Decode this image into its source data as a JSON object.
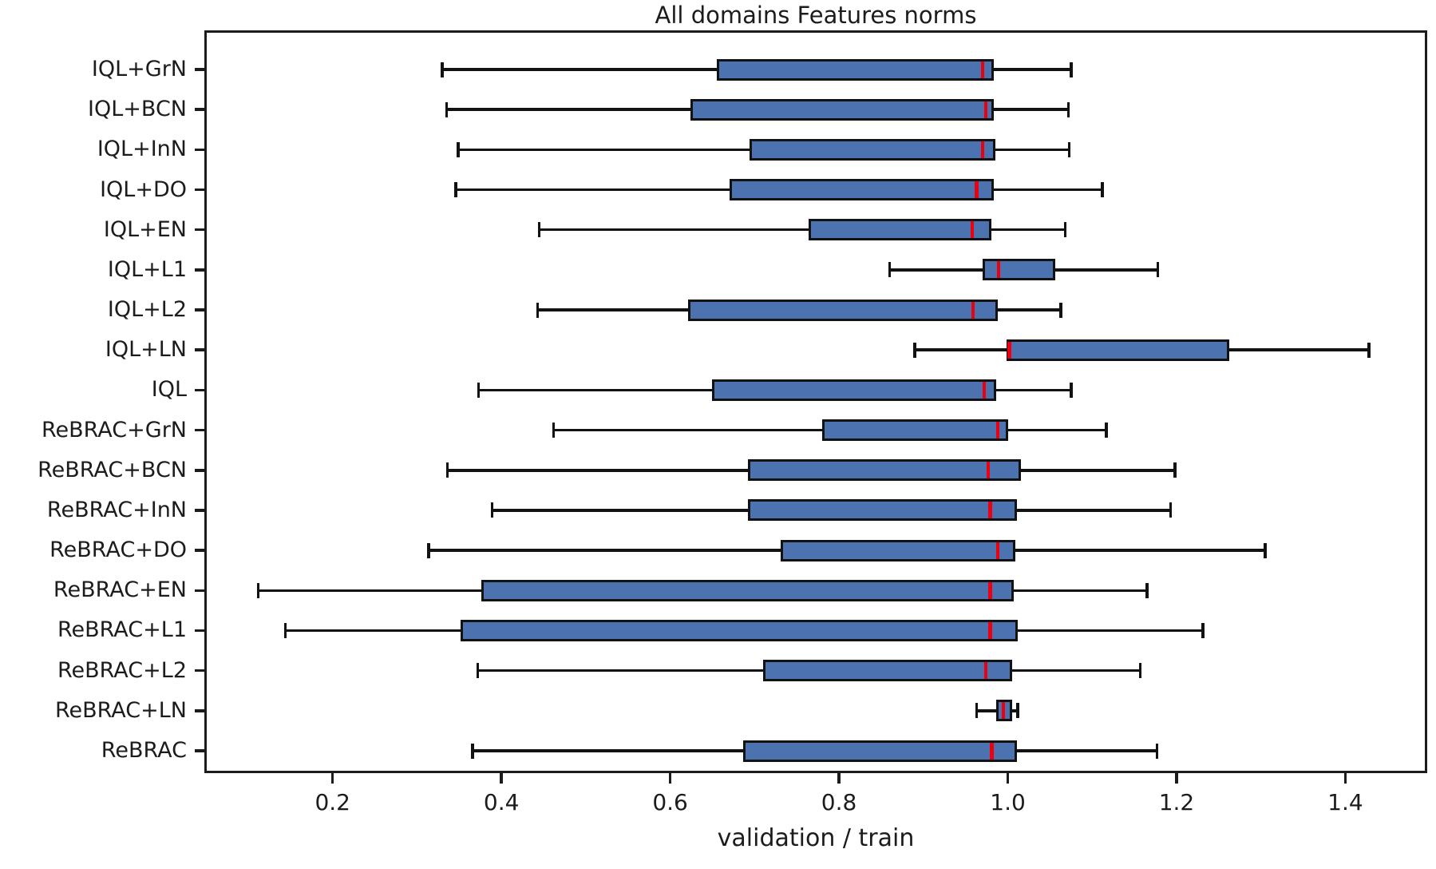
{
  "chart_data": {
    "type": "boxplot",
    "orientation": "horizontal",
    "title": "All domains Features norms",
    "xlabel": "validation / train",
    "ylabel": "",
    "xlim": [
      0.048,
      1.497
    ],
    "x_tick_values": [
      0.2,
      0.4,
      0.6,
      0.8,
      1.0,
      1.2,
      1.4
    ],
    "x_tick_labels": [
      "0.2",
      "0.4",
      "0.6",
      "0.8",
      "1.0",
      "1.2",
      "1.4"
    ],
    "grid": false,
    "legend": "none",
    "categories": [
      "IQL+GrN",
      "IQL+BCN",
      "IQL+InN",
      "IQL+DO",
      "IQL+EN",
      "IQL+L1",
      "IQL+L2",
      "IQL+LN",
      "IQL",
      "ReBRAC+GrN",
      "ReBRAC+BCN",
      "ReBRAC+InN",
      "ReBRAC+DO",
      "ReBRAC+EN",
      "ReBRAC+L1",
      "ReBRAC+L2",
      "ReBRAC+LN",
      "ReBRAC"
    ],
    "boxes": [
      {
        "label": "IQL+GrN",
        "whisker_low": 0.33,
        "q1": 0.655,
        "median": 0.97,
        "q3": 0.983,
        "whisker_high": 1.075
      },
      {
        "label": "IQL+BCN",
        "whisker_low": 0.335,
        "q1": 0.624,
        "median": 0.974,
        "q3": 0.983,
        "whisker_high": 1.072
      },
      {
        "label": "IQL+InN",
        "whisker_low": 0.349,
        "q1": 0.694,
        "median": 0.97,
        "q3": 0.985,
        "whisker_high": 1.073
      },
      {
        "label": "IQL+DO",
        "whisker_low": 0.346,
        "q1": 0.67,
        "median": 0.963,
        "q3": 0.983,
        "whisker_high": 1.112
      },
      {
        "label": "IQL+EN",
        "whisker_low": 0.445,
        "q1": 0.764,
        "median": 0.958,
        "q3": 0.981,
        "whisker_high": 1.068
      },
      {
        "label": "IQL+L1",
        "whisker_low": 0.86,
        "q1": 0.97,
        "median": 0.989,
        "q3": 1.056,
        "whisker_high": 1.178
      },
      {
        "label": "IQL+L2",
        "whisker_low": 0.443,
        "q1": 0.621,
        "median": 0.959,
        "q3": 0.988,
        "whisker_high": 1.063
      },
      {
        "label": "IQL+LN",
        "whisker_low": 0.89,
        "q1": 0.999,
        "median": 1.002,
        "q3": 1.262,
        "whisker_high": 1.428
      },
      {
        "label": "IQL",
        "whisker_low": 0.373,
        "q1": 0.65,
        "median": 0.972,
        "q3": 0.986,
        "whisker_high": 1.075
      },
      {
        "label": "ReBRAC+GrN",
        "whisker_low": 0.462,
        "q1": 0.78,
        "median": 0.988,
        "q3": 1.0,
        "whisker_high": 1.117
      },
      {
        "label": "ReBRAC+BCN",
        "whisker_low": 0.336,
        "q1": 0.692,
        "median": 0.977,
        "q3": 1.016,
        "whisker_high": 1.198
      },
      {
        "label": "ReBRAC+InN",
        "whisker_low": 0.389,
        "q1": 0.692,
        "median": 0.979,
        "q3": 1.011,
        "whisker_high": 1.193
      },
      {
        "label": "ReBRAC+DO",
        "whisker_low": 0.314,
        "q1": 0.731,
        "median": 0.988,
        "q3": 1.009,
        "whisker_high": 1.305
      },
      {
        "label": "ReBRAC+EN",
        "whisker_low": 0.112,
        "q1": 0.376,
        "median": 0.979,
        "q3": 1.007,
        "whisker_high": 1.165
      },
      {
        "label": "ReBRAC+L1",
        "whisker_low": 0.144,
        "q1": 0.352,
        "median": 0.979,
        "q3": 1.012,
        "whisker_high": 1.231
      },
      {
        "label": "ReBRAC+L2",
        "whisker_low": 0.372,
        "q1": 0.71,
        "median": 0.974,
        "q3": 1.005,
        "whisker_high": 1.157
      },
      {
        "label": "ReBRAC+LN",
        "whisker_low": 0.963,
        "q1": 0.986,
        "median": 0.995,
        "q3": 1.005,
        "whisker_high": 1.012
      },
      {
        "label": "ReBRAC",
        "whisker_low": 0.366,
        "q1": 0.686,
        "median": 0.981,
        "q3": 1.011,
        "whisker_high": 1.177
      }
    ]
  },
  "colors": {
    "box_fill": "#4c72b0",
    "box_edge": "#121212",
    "median": "#ec000f",
    "whisker": "#121212",
    "axis": "#1c1c1c",
    "text": "#1c1c1c",
    "background": "#ffffff"
  }
}
